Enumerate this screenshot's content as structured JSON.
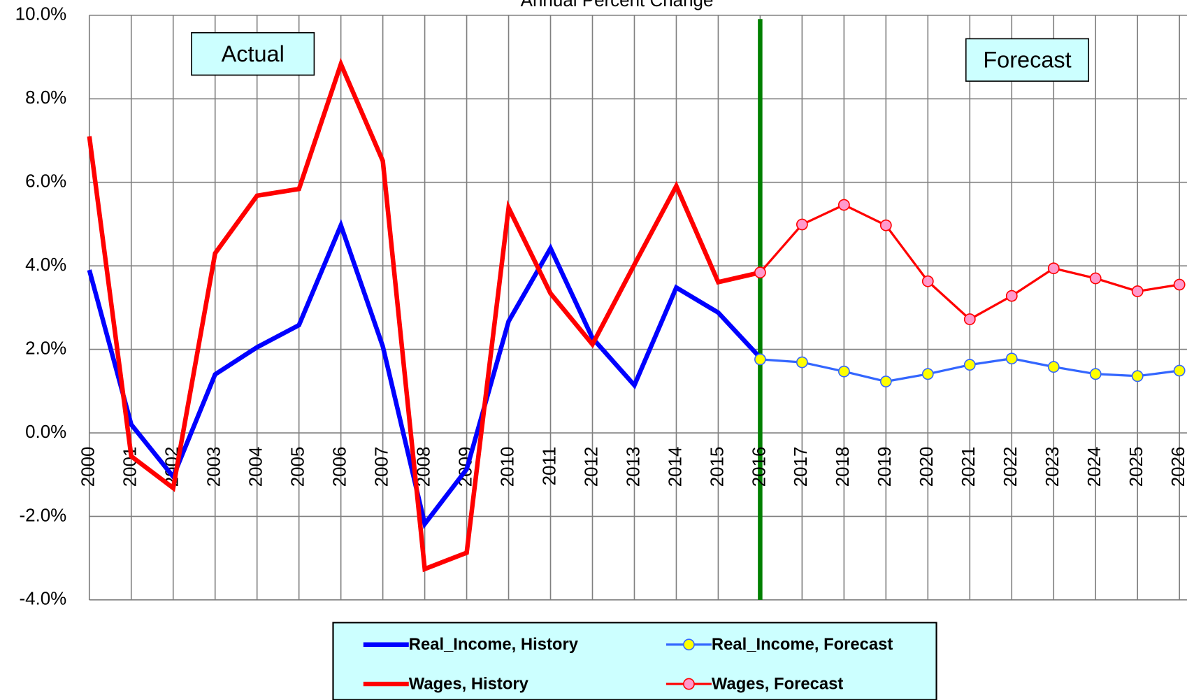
{
  "chart_data": {
    "type": "line",
    "title": "Annual Percent Change",
    "annotations": [
      "Actual",
      "Forecast"
    ],
    "categories": [
      "2000",
      "2001",
      "2002",
      "2003",
      "2004",
      "2005",
      "2006",
      "2007",
      "2008",
      "2009",
      "2010",
      "2011",
      "2012",
      "2013",
      "2014",
      "2015",
      "2016",
      "2017",
      "2018",
      "2019",
      "2020",
      "2021",
      "2022",
      "2023",
      "2024",
      "2025",
      "2026"
    ],
    "series": [
      {
        "name": "Real_Income, History",
        "color": "#0000ff",
        "values": [
          3.9,
          0.2,
          -1.05,
          1.4,
          2.05,
          2.58,
          4.97,
          2.07,
          -2.18,
          -0.87,
          2.67,
          4.42,
          2.27,
          1.14,
          3.48,
          2.88,
          1.8,
          null,
          null,
          null,
          null,
          null,
          null,
          null,
          null,
          null,
          null
        ]
      },
      {
        "name": "Real_Income, Forecast",
        "color": "#3366ff",
        "marker_color": "#ffff00",
        "values": [
          null,
          null,
          null,
          null,
          null,
          null,
          null,
          null,
          null,
          null,
          null,
          null,
          null,
          null,
          null,
          null,
          1.76,
          1.69,
          1.47,
          1.23,
          1.41,
          1.63,
          1.78,
          1.58,
          1.41,
          1.36,
          1.49
        ]
      },
      {
        "name": "Wages, History",
        "color": "#ff0000",
        "values": [
          7.1,
          -0.56,
          -1.32,
          4.3,
          5.68,
          5.84,
          8.83,
          6.51,
          -3.26,
          -2.87,
          5.39,
          3.34,
          2.12,
          4.03,
          5.91,
          3.61,
          3.84,
          null,
          null,
          null,
          null,
          null,
          null,
          null,
          null,
          null,
          null
        ]
      },
      {
        "name": "Wages, Forecast",
        "color": "#ff0000",
        "marker_color": "#ff99cc",
        "values": [
          null,
          null,
          null,
          null,
          null,
          null,
          null,
          null,
          null,
          null,
          null,
          null,
          null,
          null,
          null,
          null,
          3.84,
          4.99,
          5.46,
          4.97,
          3.63,
          2.72,
          3.28,
          3.94,
          3.7,
          3.39,
          3.55
        ]
      }
    ],
    "ylim": [
      -4,
      10
    ],
    "yticks": [
      {
        "value": -4,
        "label": "-4.0%"
      },
      {
        "value": -2,
        "label": "-2.0%"
      },
      {
        "value": 0,
        "label": "0.0%"
      },
      {
        "value": 2,
        "label": "2.0%"
      },
      {
        "value": 4,
        "label": "4.0%"
      },
      {
        "value": 6,
        "label": "6.0%"
      },
      {
        "value": 8,
        "label": "8.0%"
      },
      {
        "value": 10,
        "label": "10.0%"
      }
    ],
    "grid": true
  }
}
